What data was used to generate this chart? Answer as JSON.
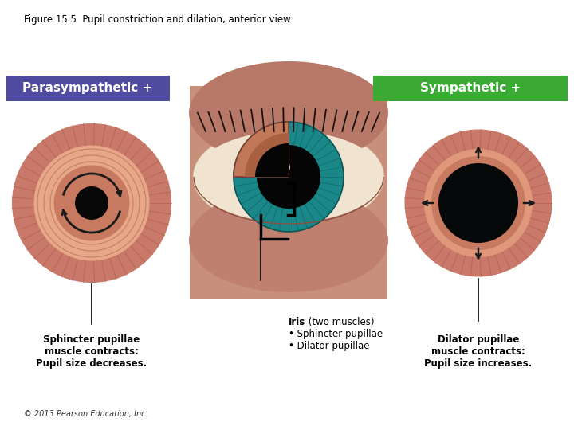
{
  "title": "Figure 15.5  Pupil constriction and dilation, anterior view.",
  "title_fontsize": 8.5,
  "title_color": "#000000",
  "background_color": "#ffffff",
  "parasympathetic_label": "Parasympathetic +",
  "parasympathetic_box_color": "#4f4b9e",
  "sympathetic_label": "Sympathetic +",
  "sympathetic_box_color": "#3aaa35",
  "label_text_color": "#ffffff",
  "label_fontsize": 11,
  "copyright": "© 2013 Pearson Education, Inc.",
  "copyright_fontsize": 7
}
